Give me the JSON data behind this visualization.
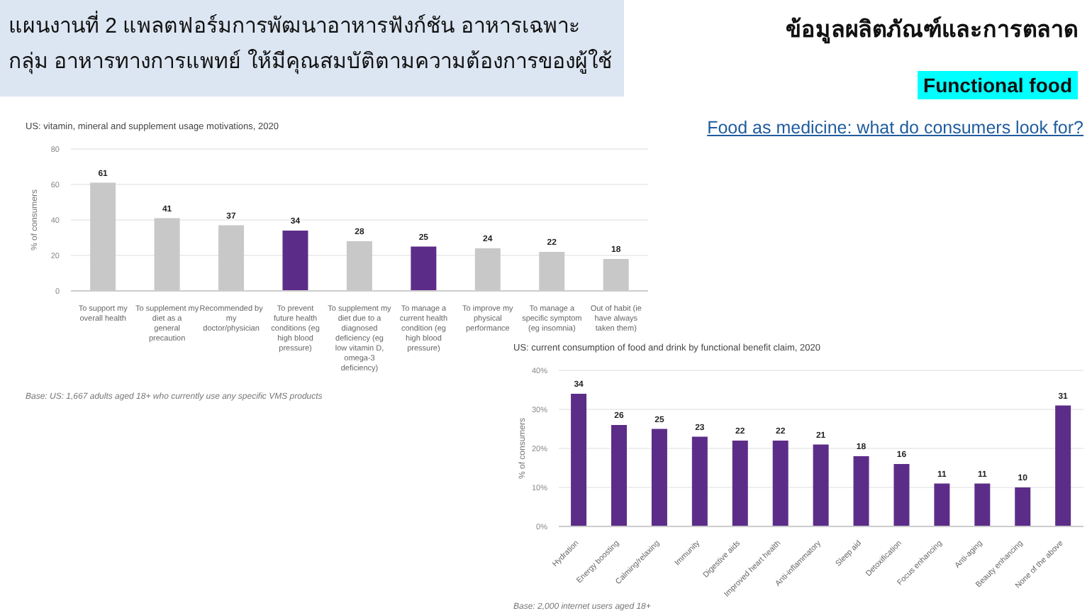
{
  "chart_data": [
    {
      "type": "other",
      "title": "แผนงานที่ 2 แพลตฟอร์มการพัฒนาอาหารฟังก์ชัน อาหารเฉพาะกลุ่ม อาหารทางการแพทย์ ให้มีคุณสมบัติตามความต้องการของผู้ใช้",
      "annotations": [
        "ข้อมูลผลิตภัณฑ์และการตลาด",
        "Functional food",
        "Food as medicine: what do consumers look for?"
      ]
    },
    {
      "type": "bar",
      "title": "US: vitamin, mineral and supplement usage motivations, 2020",
      "ylabel": "% of consumers",
      "categories": [
        "To support my overall health",
        "To supplement my diet as a general precaution",
        "Recommended by my doctor/physician",
        "To prevent future health conditions (eg high blood pressure)",
        "To supplement my diet due to a diagnosed deficiency (eg low vitamin D, omega-3 deficiency)",
        "To manage a current health condition (eg high blood pressure)",
        "To improve my physical performance",
        "To manage a specific symptom (eg insomnia)",
        "Out of habit (ie have always taken them)"
      ],
      "values": [
        61,
        41,
        37,
        34,
        28,
        25,
        24,
        22,
        18
      ],
      "colors": [
        "#c8c8c8",
        "#c8c8c8",
        "#c8c8c8",
        "#5c2d88",
        "#c8c8c8",
        "#5c2d88",
        "#c8c8c8",
        "#c8c8c8",
        "#c8c8c8"
      ],
      "ylim": [
        0,
        80
      ],
      "yticks": [
        0,
        20,
        40,
        60,
        80
      ],
      "grid": "y",
      "data_labels": true,
      "annotations": [
        "Base: US: 1,667 adults aged 18+ who currently use any specific VMS products"
      ]
    },
    {
      "type": "bar",
      "title": "US: current consumption of food and drink by functional benefit claim, 2020",
      "ylabel": "% of consumers",
      "categories": [
        "Hydration",
        "Energy boosting",
        "Calming/relaxing",
        "Immunity",
        "Digestive aids",
        "Improved heart health",
        "Anti-inflammatory",
        "Sleep aid",
        "Detoxification",
        "Focus enhancing",
        "Anti-aging",
        "Beauty enhancing",
        "None of the above"
      ],
      "values": [
        34,
        26,
        25,
        23,
        22,
        22,
        21,
        18,
        16,
        11,
        11,
        10,
        31
      ],
      "color": "#5c2d88",
      "ylim": [
        0,
        40
      ],
      "yticks": [
        {
          "value": 0,
          "label": "0%"
        },
        {
          "value": 10,
          "label": "10%"
        },
        {
          "value": 20,
          "label": "20%"
        },
        {
          "value": 30,
          "label": "30%"
        },
        {
          "value": 40,
          "label": "40%"
        }
      ],
      "grid": "y",
      "data_labels": true,
      "annotations": [
        "Base: 2,000 internet users aged 18+"
      ]
    }
  ]
}
